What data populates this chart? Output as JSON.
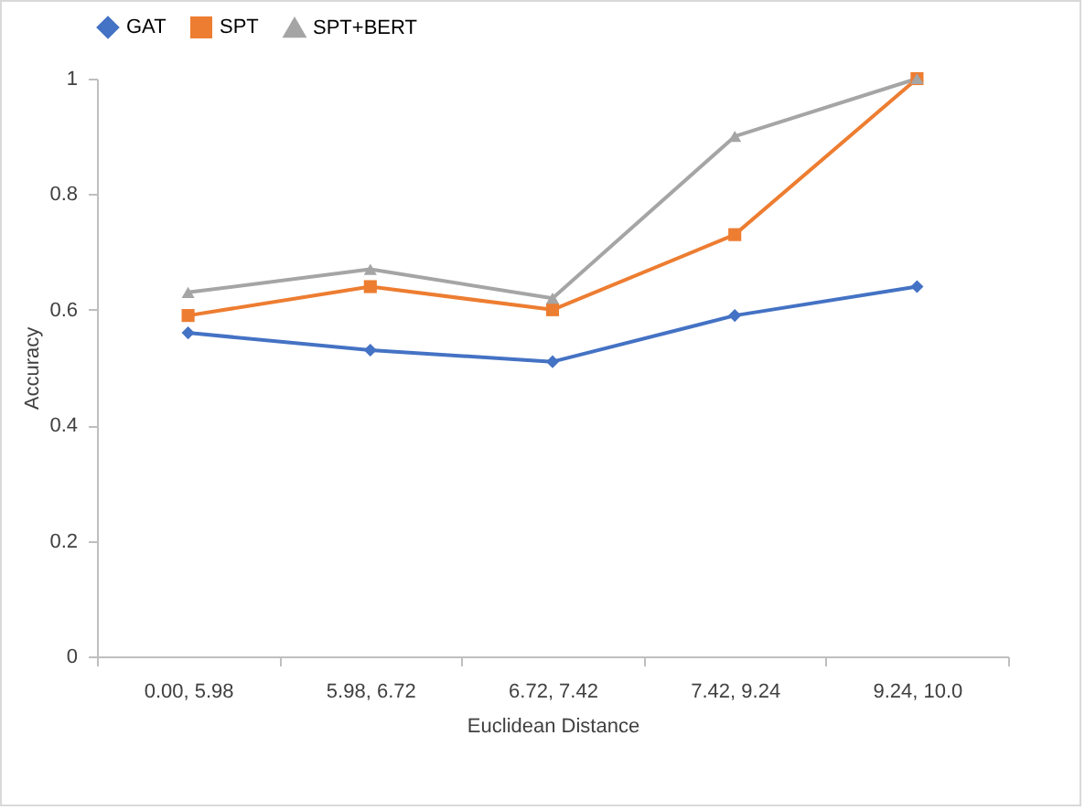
{
  "chart_data": {
    "type": "line",
    "xlabel": "Euclidean Distance",
    "ylabel": "Accuracy",
    "categories": [
      "0.00, 5.98",
      "5.98, 6.72",
      "6.72, 7.42",
      "7.42, 9.24",
      "9.24, 10.0"
    ],
    "series": [
      {
        "name": "GAT",
        "color": "#4472c4",
        "marker": "diamond",
        "values": [
          0.56,
          0.53,
          0.51,
          0.59,
          0.64
        ]
      },
      {
        "name": "SPT",
        "color": "#ed7d31",
        "marker": "square",
        "values": [
          0.59,
          0.64,
          0.6,
          0.73,
          1.0
        ]
      },
      {
        "name": "SPT+BERT",
        "color": "#a5a5a5",
        "marker": "triangle",
        "values": [
          0.63,
          0.67,
          0.62,
          0.9,
          1.0
        ]
      }
    ],
    "ylim": [
      0,
      1
    ],
    "yticks": [
      0,
      0.2,
      0.4,
      0.6,
      0.8,
      1
    ],
    "grid": false,
    "legend": "top",
    "line_style": "solid"
  }
}
